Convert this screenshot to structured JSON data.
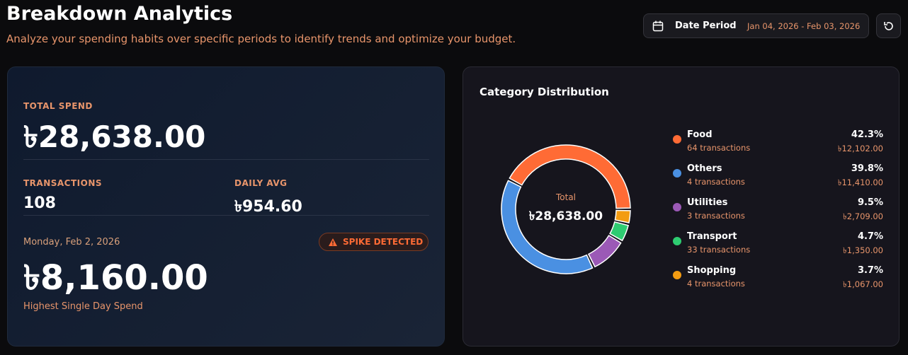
{
  "header": {
    "title": "Breakdown Analytics",
    "subtitle": "Analyze your spending habits over specific periods to identify trends and optimize your budget.",
    "date_label": "Date Period",
    "date_range": "Jan 04, 2026 - Feb 03, 2026"
  },
  "summary": {
    "total_label": "TOTAL SPEND",
    "total": "৳28,638.00",
    "transactions_label": "TRANSACTIONS",
    "transactions": "108",
    "daily_avg_label": "DAILY AVG",
    "daily_avg": "৳954.60",
    "spike_date": "Monday, Feb 2, 2026",
    "spike_badge": "SPIKE DETECTED",
    "spike_amount": "৳8,160.00",
    "spike_caption": "Highest Single Day Spend"
  },
  "chart_data": {
    "type": "donut",
    "title": "Category Distribution",
    "center_label": "Total",
    "center_value": "৳28,638.00",
    "categories": [
      "Food",
      "Others",
      "Utilities",
      "Transport",
      "Shopping"
    ],
    "values": [
      42.3,
      39.8,
      9.5,
      4.7,
      3.7
    ],
    "value_labels": [
      "42.3%",
      "39.8%",
      "9.5%",
      "4.7%",
      "3.7%"
    ],
    "colors": [
      "#ff6b35",
      "#4a90e2",
      "#9b59b6",
      "#2ecc71",
      "#f39c12"
    ],
    "transactions": [
      "64 transactions",
      "4 transactions",
      "3 transactions",
      "33 transactions",
      "4 transactions"
    ],
    "amounts": [
      "৳12,102.00",
      "৳11,410.00",
      "৳2,709.00",
      "৳1,350.00",
      "৳1,067.00"
    ]
  }
}
